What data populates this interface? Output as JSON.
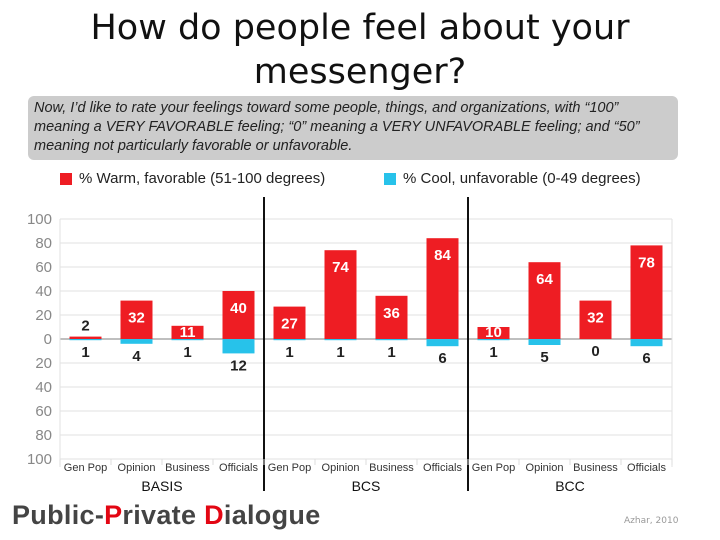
{
  "slide": {
    "title": "How do people feel about your messenger?",
    "question": "Now, I’d like to rate your feelings toward some people, things, and organizations, with “100” meaning a VERY FAVORABLE feeling; “0” meaning a VERY UNFAVORABLE feeling; and “50” meaning not particularly favorable or unfavorable.",
    "footer_logo": [
      "Public-",
      "P",
      "rivate ",
      "D",
      "ialogue"
    ],
    "credit": "Azhar, 2010"
  },
  "chart_data": {
    "type": "bar",
    "legend": [
      {
        "label": "% Warm, favorable (51-100 degrees)",
        "color": "#ee1d23"
      },
      {
        "label": "% Cool, unfavorable (0-49 degrees)",
        "color": "#27c2ea"
      }
    ],
    "y_tick_labels": [
      "100",
      "80",
      "60",
      "40",
      "20",
      "0",
      "20",
      "40",
      "60",
      "80",
      "100"
    ],
    "ylim": [
      -100,
      100
    ],
    "grid": true,
    "groups": [
      {
        "label": "BASIS",
        "categories": [
          "Gen Pop",
          "Opinion",
          "Business",
          "Officials"
        ],
        "warm": [
          2,
          32,
          11,
          40
        ],
        "cool": [
          1,
          4,
          1,
          12
        ]
      },
      {
        "label": "BCS",
        "categories": [
          "Gen Pop",
          "Opinion",
          "Business",
          "Officials"
        ],
        "warm": [
          27,
          74,
          36,
          84
        ],
        "cool": [
          1,
          1,
          1,
          6
        ]
      },
      {
        "label": "BCC",
        "categories": [
          "Gen Pop",
          "Opinion",
          "Business",
          "Officials"
        ],
        "warm": [
          10,
          64,
          32,
          78
        ],
        "cool": [
          1,
          5,
          0,
          6
        ]
      }
    ]
  }
}
